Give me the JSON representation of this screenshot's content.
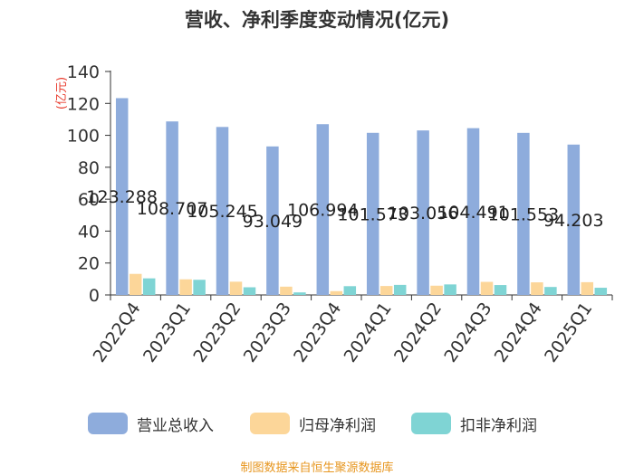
{
  "colors": {
    "revenue": "#8eacdc",
    "net_profit": "#fcd699",
    "deducted_profit": "#7fd4d4",
    "axis": "#333333",
    "source_text": "#e7961f",
    "unit_text": "#e8392b"
  },
  "chart_data": {
    "type": "bar",
    "title": "营收、净利季度变动情况(亿元)",
    "ylabel": "(亿元)",
    "xlabel": "",
    "ylim": [
      0,
      140
    ],
    "yticks": [
      0,
      20,
      40,
      60,
      80,
      100,
      120,
      140
    ],
    "categories": [
      "2022Q4",
      "2023Q1",
      "2023Q2",
      "2023Q3",
      "2023Q4",
      "2024Q1",
      "2024Q2",
      "2024Q3",
      "2024Q4",
      "2025Q1"
    ],
    "series": [
      {
        "name": "营业总收入",
        "values": [
          123.288,
          108.707,
          105.245,
          93.049,
          106.994,
          101.573,
          103.056,
          104.491,
          101.553,
          94.203
        ],
        "data_labels": [
          "123.288",
          "108.707",
          "105.245",
          "93.049",
          "106.994",
          "101.573",
          "103.056",
          "104.491",
          "101.553",
          "94.203"
        ]
      },
      {
        "name": "归母净利润",
        "values": [
          13.2,
          9.8,
          8.3,
          5.2,
          2.4,
          5.6,
          5.8,
          8.2,
          7.9,
          8.0
        ]
      },
      {
        "name": "扣非净利润",
        "values": [
          10.4,
          9.5,
          4.8,
          1.6,
          5.5,
          6.3,
          6.6,
          6.2,
          5.0,
          4.5
        ]
      }
    ],
    "grid": false,
    "legend_position": "bottom"
  },
  "source": "制图数据来自恒生聚源数据库"
}
